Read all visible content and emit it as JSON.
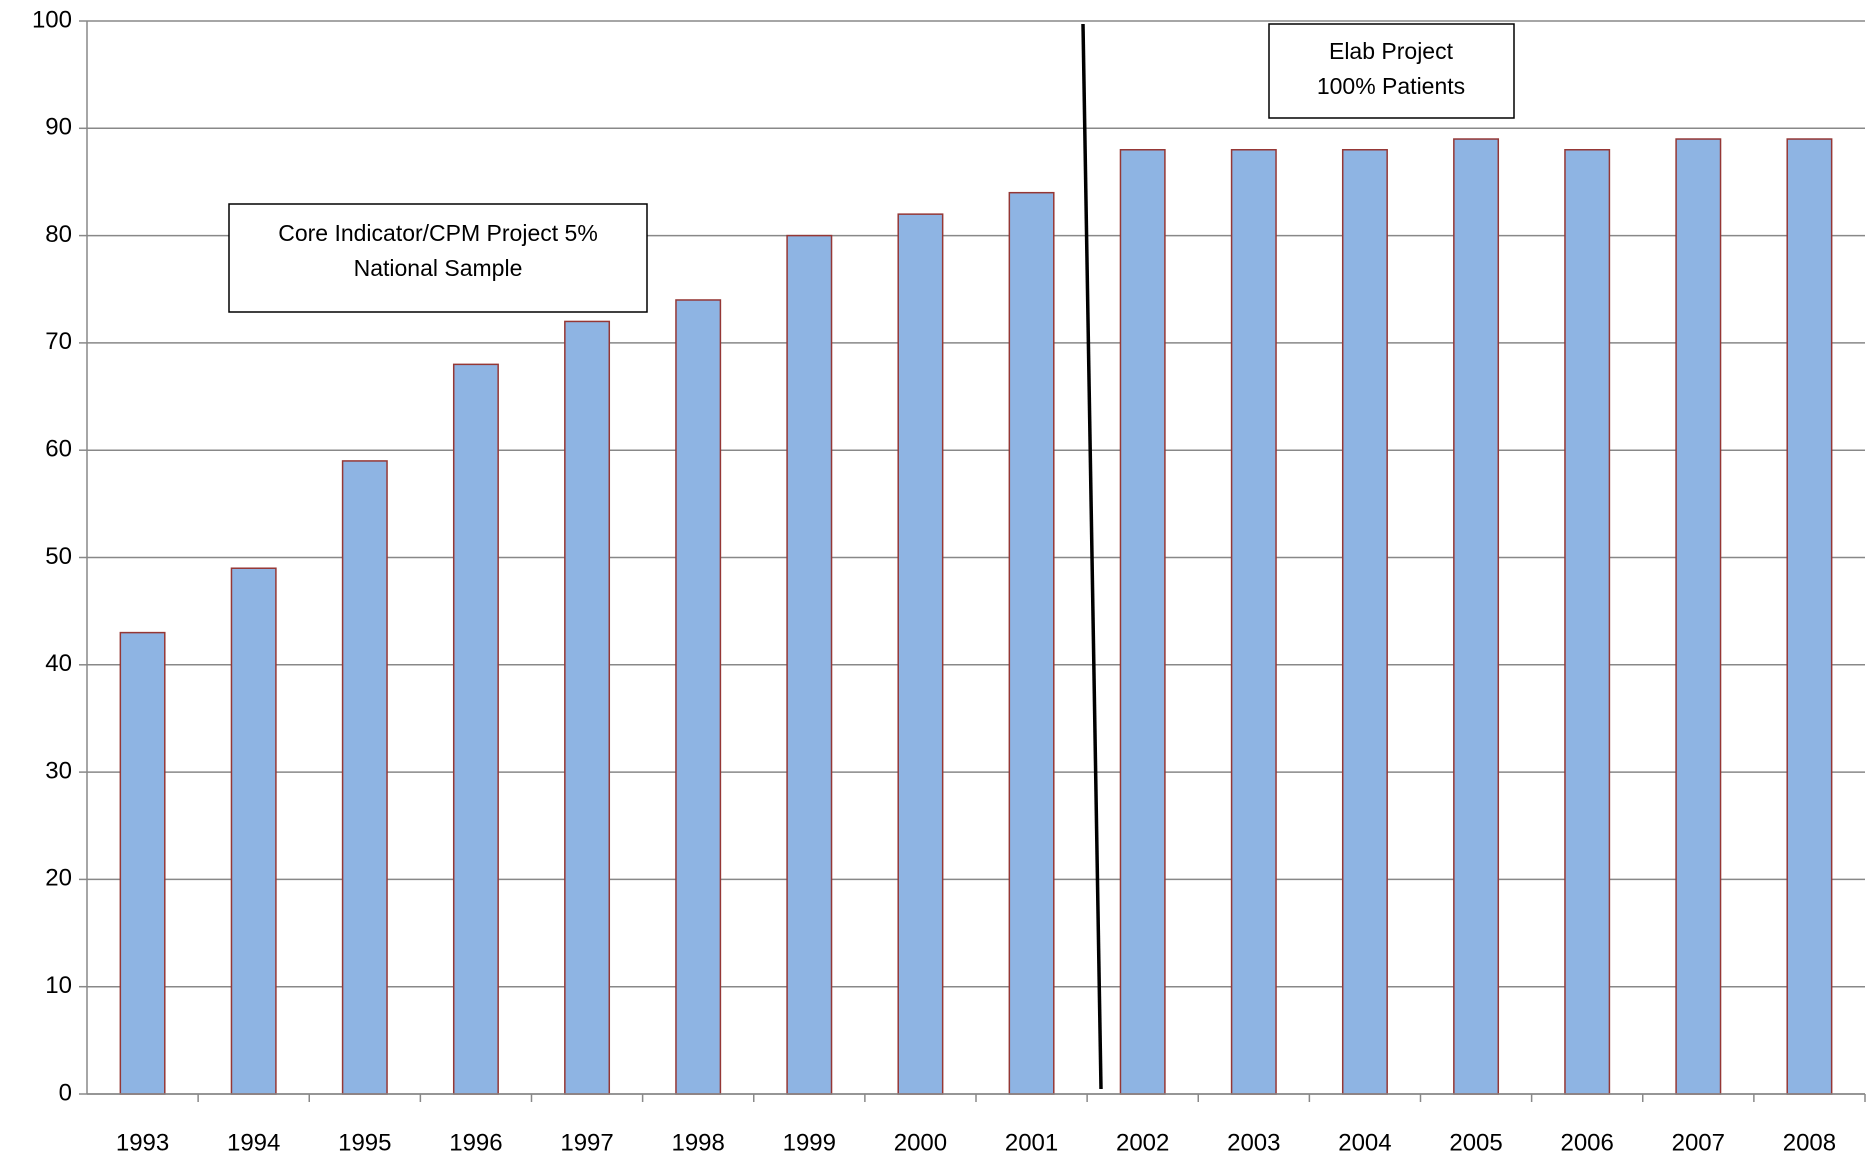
{
  "chart_data": {
    "type": "bar",
    "categories": [
      "1993",
      "1994",
      "1995",
      "1996",
      "1997",
      "1998",
      "1999",
      "2000",
      "2001",
      "2002",
      "2003",
      "2004",
      "2005",
      "2006",
      "2007",
      "2008"
    ],
    "values": [
      43,
      49,
      59,
      68,
      72,
      74,
      80,
      82,
      84,
      88,
      88,
      88,
      89,
      88,
      89,
      89
    ],
    "color": "#8eb4e3",
    "edge_color": "#953735",
    "ylim": [
      0,
      100
    ],
    "yticks": [
      0,
      10,
      20,
      30,
      40,
      50,
      60,
      70,
      80,
      90,
      100
    ],
    "grid": true,
    "annotations": [
      {
        "lines": [
          "Core Indicator/CPM Project 5%",
          "National Sample"
        ]
      },
      {
        "lines": [
          "Elab Project",
          "100% Patients"
        ]
      }
    ]
  }
}
